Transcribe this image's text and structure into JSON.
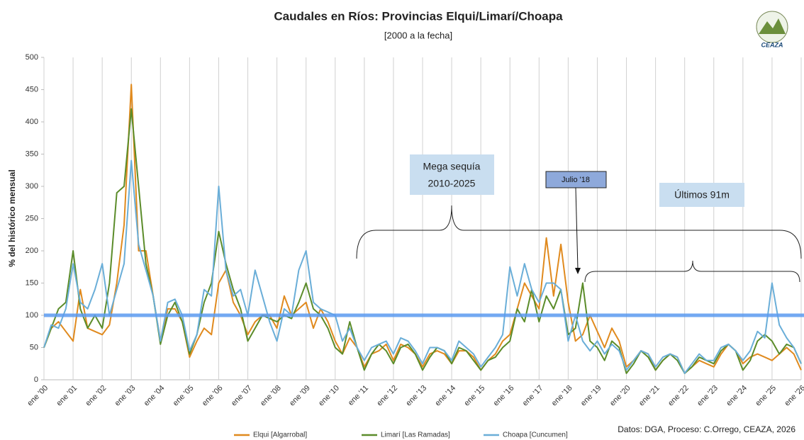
{
  "chart_data": {
    "type": "line",
    "title": "Caudales en Ríos: Provincias Elqui/Limarí/Choapa",
    "subtitle": "[2000 a la fecha]",
    "y_label": "% del histórico mensual",
    "source": "Datos: DGA, Proceso: C.Orrego, CEAZA, 2026",
    "logo": "CEAZA",
    "annotations": [
      {
        "lines": [
          "Mega sequía",
          "2010-2025"
        ]
      },
      {
        "lines": [
          "Julio  '18"
        ]
      },
      {
        "lines": [
          "Últimos 91m"
        ]
      }
    ],
    "reference_line": {
      "value": 100,
      "color": "#5b9bf0"
    },
    "xlim": [
      2000,
      2026
    ],
    "ylim": [
      0,
      500
    ],
    "yticks": [
      0,
      50,
      100,
      150,
      200,
      250,
      300,
      350,
      400,
      450,
      500
    ],
    "xticks": [
      {
        "value": 2000,
        "label": "ene '00"
      },
      {
        "value": 2001,
        "label": "ene '01"
      },
      {
        "value": 2002,
        "label": "ene '02"
      },
      {
        "value": 2003,
        "label": "ene '03"
      },
      {
        "value": 2004,
        "label": "ene '04"
      },
      {
        "value": 2005,
        "label": "ene '05"
      },
      {
        "value": 2006,
        "label": "ene '06"
      },
      {
        "value": 2007,
        "label": "ene '07"
      },
      {
        "value": 2008,
        "label": "ene '08"
      },
      {
        "value": 2009,
        "label": "ene '09"
      },
      {
        "value": 2010,
        "label": "ene '10"
      },
      {
        "value": 2011,
        "label": "ene '11"
      },
      {
        "value": 2012,
        "label": "ene '12"
      },
      {
        "value": 2013,
        "label": "ene '13"
      },
      {
        "value": 2014,
        "label": "ene '14"
      },
      {
        "value": 2015,
        "label": "ene '15"
      },
      {
        "value": 2016,
        "label": "ene '16"
      },
      {
        "value": 2017,
        "label": "ene '17"
      },
      {
        "value": 2018,
        "label": "ene '18"
      },
      {
        "value": 2019,
        "label": "ene '19"
      },
      {
        "value": 2020,
        "label": "ene '20"
      },
      {
        "value": 2021,
        "label": "ene '21"
      },
      {
        "value": 2022,
        "label": "ene '22"
      },
      {
        "value": 2023,
        "label": "ene '23"
      },
      {
        "value": 2024,
        "label": "ene '24"
      },
      {
        "value": 2025,
        "label": "ene '25"
      },
      {
        "value": 2026,
        "label": "ene '26"
      }
    ],
    "grid": "x",
    "x": [
      2000,
      2000.25,
      2000.5,
      2000.75,
      2001,
      2001.25,
      2001.5,
      2001.75,
      2002,
      2002.25,
      2002.5,
      2002.75,
      2003,
      2003.25,
      2003.5,
      2003.75,
      2004,
      2004.25,
      2004.5,
      2004.75,
      2005,
      2005.25,
      2005.5,
      2005.75,
      2006,
      2006.25,
      2006.5,
      2006.75,
      2007,
      2007.25,
      2007.5,
      2007.75,
      2008,
      2008.25,
      2008.5,
      2008.75,
      2009,
      2009.25,
      2009.5,
      2009.75,
      2010,
      2010.25,
      2010.5,
      2010.75,
      2011,
      2011.25,
      2011.5,
      2011.75,
      2012,
      2012.25,
      2012.5,
      2012.75,
      2013,
      2013.25,
      2013.5,
      2013.75,
      2014,
      2014.25,
      2014.5,
      2014.75,
      2015,
      2015.25,
      2015.5,
      2015.75,
      2016,
      2016.25,
      2016.5,
      2016.75,
      2017,
      2017.25,
      2017.5,
      2017.75,
      2018,
      2018.25,
      2018.5,
      2018.75,
      2019,
      2019.25,
      2019.5,
      2019.75,
      2020,
      2020.25,
      2020.5,
      2020.75,
      2021,
      2021.25,
      2021.5,
      2021.75,
      2022,
      2022.25,
      2022.5,
      2022.75,
      2023,
      2023.25,
      2023.5,
      2023.75,
      2024,
      2024.25,
      2024.5,
      2024.75,
      2025,
      2025.25,
      2025.5,
      2025.75,
      2026
    ],
    "series": [
      {
        "name": "Elqui [Algarrobal]",
        "color": "#e08a1e",
        "values": [
          50,
          80,
          90,
          75,
          60,
          140,
          80,
          75,
          70,
          85,
          150,
          240,
          458,
          200,
          200,
          130,
          60,
          110,
          110,
          90,
          35,
          60,
          80,
          70,
          150,
          170,
          120,
          100,
          70,
          90,
          100,
          100,
          80,
          130,
          100,
          110,
          120,
          80,
          110,
          90,
          60,
          40,
          65,
          50,
          20,
          40,
          45,
          55,
          30,
          55,
          50,
          40,
          20,
          40,
          45,
          40,
          25,
          45,
          45,
          35,
          15,
          30,
          40,
          60,
          70,
          110,
          150,
          130,
          110,
          220,
          130,
          210,
          120,
          60,
          70,
          100,
          75,
          50,
          80,
          60,
          20,
          30,
          45,
          40,
          15,
          30,
          40,
          35,
          10,
          20,
          30,
          25,
          20,
          40,
          55,
          45,
          25,
          35,
          40,
          35,
          30,
          40,
          50,
          40,
          15
        ]
      },
      {
        "name": "Limarí [Las Ramadas]",
        "color": "#5b8c2a",
        "values": [
          50,
          80,
          110,
          120,
          200,
          110,
          80,
          100,
          80,
          150,
          290,
          300,
          420,
          300,
          180,
          130,
          55,
          100,
          120,
          90,
          40,
          70,
          120,
          150,
          230,
          180,
          140,
          110,
          60,
          80,
          100,
          95,
          90,
          100,
          95,
          120,
          150,
          110,
          100,
          80,
          50,
          40,
          90,
          50,
          15,
          40,
          55,
          45,
          25,
          50,
          55,
          40,
          15,
          35,
          50,
          45,
          25,
          50,
          45,
          30,
          15,
          30,
          35,
          50,
          60,
          110,
          90,
          140,
          90,
          130,
          110,
          140,
          70,
          80,
          150,
          60,
          50,
          30,
          60,
          50,
          10,
          25,
          45,
          35,
          15,
          30,
          40,
          30,
          10,
          20,
          35,
          30,
          25,
          45,
          55,
          45,
          15,
          30,
          60,
          70,
          60,
          40,
          55,
          50,
          25
        ]
      },
      {
        "name": "Choapa [Cuncumen]",
        "color": "#6aaed8",
        "values": [
          50,
          85,
          80,
          110,
          180,
          120,
          110,
          140,
          180,
          100,
          140,
          180,
          340,
          210,
          170,
          130,
          60,
          120,
          125,
          100,
          45,
          70,
          140,
          130,
          300,
          170,
          130,
          140,
          100,
          170,
          130,
          90,
          60,
          110,
          100,
          170,
          200,
          120,
          110,
          105,
          100,
          60,
          80,
          50,
          30,
          50,
          55,
          60,
          40,
          65,
          60,
          45,
          25,
          50,
          50,
          45,
          30,
          60,
          50,
          40,
          20,
          35,
          50,
          70,
          175,
          130,
          180,
          140,
          120,
          150,
          150,
          140,
          60,
          100,
          60,
          45,
          60,
          40,
          55,
          45,
          15,
          30,
          45,
          40,
          20,
          35,
          40,
          35,
          10,
          25,
          40,
          30,
          30,
          50,
          55,
          45,
          30,
          45,
          75,
          65,
          150,
          85,
          65,
          50,
          25
        ]
      }
    ]
  }
}
